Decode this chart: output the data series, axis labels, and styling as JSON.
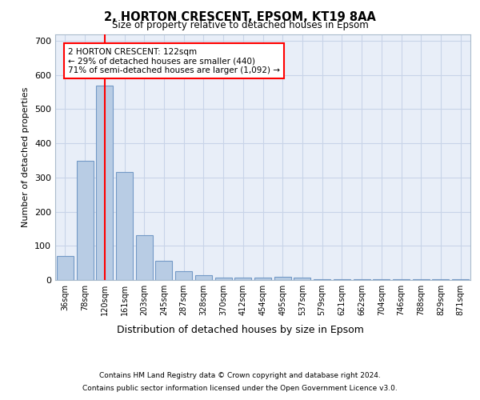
{
  "title1": "2, HORTON CRESCENT, EPSOM, KT19 8AA",
  "title2": "Size of property relative to detached houses in Epsom",
  "xlabel": "Distribution of detached houses by size in Epsom",
  "ylabel": "Number of detached properties",
  "categories": [
    "36sqm",
    "78sqm",
    "120sqm",
    "161sqm",
    "203sqm",
    "245sqm",
    "287sqm",
    "328sqm",
    "370sqm",
    "412sqm",
    "454sqm",
    "495sqm",
    "537sqm",
    "579sqm",
    "621sqm",
    "662sqm",
    "704sqm",
    "746sqm",
    "788sqm",
    "829sqm",
    "871sqm"
  ],
  "values": [
    70,
    350,
    570,
    315,
    130,
    57,
    25,
    13,
    7,
    7,
    7,
    10,
    7,
    2,
    2,
    2,
    2,
    2,
    2,
    2,
    2
  ],
  "bar_color": "#b8cce4",
  "bar_edge_color": "#7399c6",
  "red_line_x": 2,
  "annotation_text": "2 HORTON CRESCENT: 122sqm\n← 29% of detached houses are smaller (440)\n71% of semi-detached houses are larger (1,092) →",
  "annotation_box_color": "white",
  "annotation_box_edge": "red",
  "ylim": [
    0,
    720
  ],
  "yticks": [
    0,
    100,
    200,
    300,
    400,
    500,
    600,
    700
  ],
  "grid_color": "#c8d4e8",
  "background_color": "#e8eef8",
  "footer1": "Contains HM Land Registry data © Crown copyright and database right 2024.",
  "footer2": "Contains public sector information licensed under the Open Government Licence v3.0."
}
